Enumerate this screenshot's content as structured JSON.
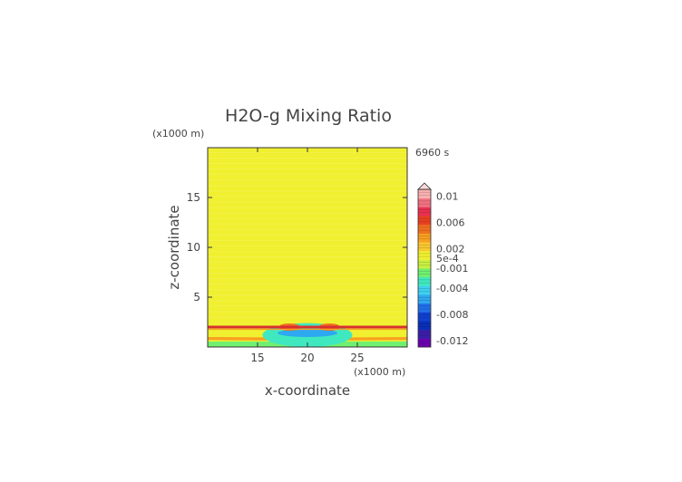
{
  "chart_data": {
    "type": "heatmap",
    "title": "H2O-g Mixing Ratio",
    "xlabel": "x-coordinate",
    "ylabel": "z-coordinate",
    "x_unit": "(x1000 m)",
    "y_unit": "(x1000 m)",
    "time_label": "6960 s",
    "xlim": [
      10,
      30
    ],
    "ylim": [
      0,
      20
    ],
    "x_ticks": [
      "15",
      "20",
      "25"
    ],
    "y_ticks": [
      "5",
      "10",
      "15"
    ],
    "x_tick_values": [
      15,
      20,
      25
    ],
    "y_tick_values": [
      5,
      10,
      15
    ],
    "colorbar_labels": [
      "0.01",
      "0.006",
      "0.002",
      "5e-4",
      "-0.001",
      "-0.004",
      "-0.008",
      "-0.012"
    ],
    "colorbar_label_values": [
      0.01,
      0.006,
      0.002,
      0.0005,
      -0.001,
      -0.004,
      -0.008,
      -0.012
    ],
    "colorbar_range": [
      -0.013,
      0.011
    ],
    "colorbar_colors": [
      "#6a00b0",
      "#3a1ea8",
      "#0a2fb8",
      "#1040d0",
      "#1f6fe8",
      "#2ea8f0",
      "#3fd0f0",
      "#40e8c0",
      "#70f070",
      "#c8f040",
      "#f0f030",
      "#f8c830",
      "#f8a020",
      "#f07020",
      "#e84020",
      "#e83050",
      "#f07080",
      "#f8b0b0"
    ],
    "regions": [
      {
        "name": "background",
        "value": 0.0,
        "color": "#f0f030"
      },
      {
        "name": "inversion-line",
        "value": 0.007,
        "z": 2.0,
        "color": "#d83030"
      },
      {
        "name": "plume-core",
        "value": -0.004,
        "x": 20,
        "z": 1.4,
        "color": "#2ea8f0"
      },
      {
        "name": "plume-shell",
        "value": -0.001,
        "x": 20,
        "z": 1.2,
        "color": "#40e8c0"
      },
      {
        "name": "surface-layer",
        "value": -0.0015,
        "z": 0.3,
        "color": "#70f070"
      },
      {
        "name": "warm-band",
        "value": 0.002,
        "z": 0.8,
        "color": "#f8a020"
      }
    ]
  }
}
